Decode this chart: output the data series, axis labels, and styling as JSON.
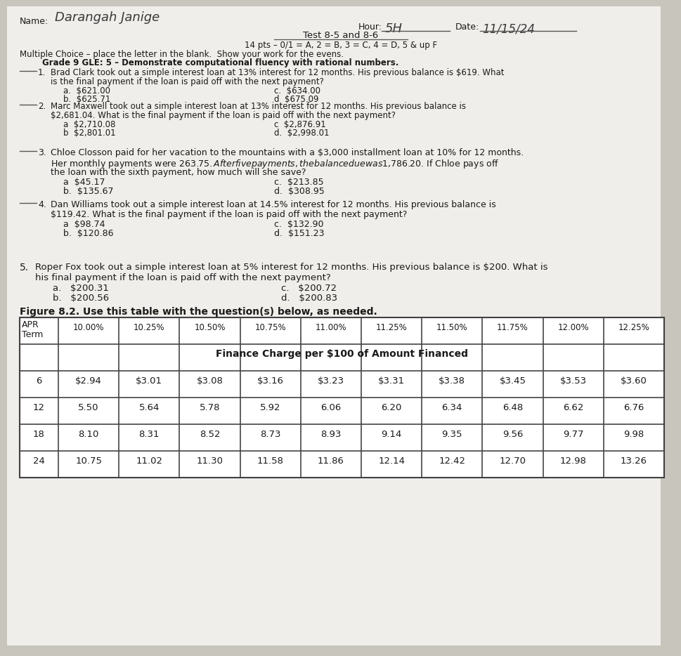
{
  "bg_color": "#c8c5bc",
  "paper_color": "#f0eeea",
  "name_label": "Name:",
  "name_value": "Darangah Janige",
  "hour_label": "Hour:",
  "hour_value": "5H",
  "date_label": "Date:",
  "date_value": "11/15/24",
  "title_line": "Test 8-5 and 8-6",
  "pts_line": "14 pts – 0/1 = A, 2 = B, 3 = C, 4 = D, 5 & up F",
  "mc_line": "Multiple Choice – place the letter in the blank.  Show your work for the evens.",
  "gle_line": "Grade 9 GLE: 5 – Demonstrate computational fluency with rational numbers.",
  "q1_num": "1.",
  "q1_text1": "Brad Clark took out a simple interest loan at 13% interest for 12 months. His previous balance is $619. What",
  "q1_text2": "is the final payment if the loan is paid off with the next payment?",
  "q1_a": "a.  $621.00",
  "q1_b": "b.  $625.71",
  "q1_c": "c.  $634.00",
  "q1_d": "d  $675.09",
  "q2_num": "2.",
  "q2_text1": "Marc Maxwell took out a simple interest loan at 13% interest for 12 months. His previous balance is",
  "q2_text2": "$2,681.04. What is the final payment if the loan is paid off with the next payment?",
  "q2_a": "a  $2,710.08",
  "q2_b": "b  $2,801.01",
  "q2_c": "c  $2,876.91",
  "q2_d": "d.  $2,998.01",
  "q3_num": "3.",
  "q3_text1": "Chloe Closson paid for her vacation to the mountains with a $3,000 installment loan at 10% for 12 months.",
  "q3_text2": "Her monthly payments were $263.75. After five payments, the balance due was $1,786.20. If Chloe pays off",
  "q3_text3": "the loan with the sixth payment, how much will she save?",
  "q3_a": "a  $45.17",
  "q3_b": "b.  $135.67",
  "q3_c": "c.  $213.85",
  "q3_d": "d.  $308.95",
  "q4_num": "4.",
  "q4_text1": "Dan Williams took out a simple interest loan at 14.5% interest for 12 months. His previous balance is",
  "q4_text2": "$119.42. What is the final payment if the loan is paid off with the next payment?",
  "q4_a": "a  $98.74",
  "q4_b": "b.  $120.86",
  "q4_c": "c.  $132.90",
  "q4_d": "d.  $151.23",
  "q5_num": "5.",
  "q5_text1": "Roper Fox took out a simple interest loan at 5% interest for 12 months. His previous balance is $200. What is",
  "q5_text2": "his final payment if the loan is paid off with the next payment?",
  "q5_a": "a.   $200.31",
  "q5_b": "b.   $200.56",
  "q5_c": "c.   $200.72",
  "q5_d": "d.   $200.83",
  "figure_caption": "Figure 8.2. Use this table with the question(s) below, as needed.",
  "table_headers": [
    "10.00%",
    "10.25%",
    "10.50%",
    "10.75%",
    "11.00%",
    "11.25%",
    "11.50%",
    "11.75%",
    "12.00%",
    "12.25%"
  ],
  "table_subheader": "Finance Charge per $100 of Amount Financed",
  "table_rows": [
    [
      "6",
      "$2.94",
      "$3.01",
      "$3.08",
      "$3.16",
      "$3.23",
      "$3.31",
      "$3.38",
      "$3.45",
      "$3.53",
      "$3.60"
    ],
    [
      "12",
      "5.50",
      "5.64",
      "5.78",
      "5.92",
      "6.06",
      "6.20",
      "6.34",
      "6.48",
      "6.62",
      "6.76"
    ],
    [
      "18",
      "8.10",
      "8.31",
      "8.52",
      "8.73",
      "8.93",
      "9.14",
      "9.35",
      "9.56",
      "9.77",
      "9.98"
    ],
    [
      "24",
      "10.75",
      "11.02",
      "11.30",
      "11.58",
      "11.86",
      "12.14",
      "12.42",
      "12.70",
      "12.98",
      "13.26"
    ]
  ]
}
